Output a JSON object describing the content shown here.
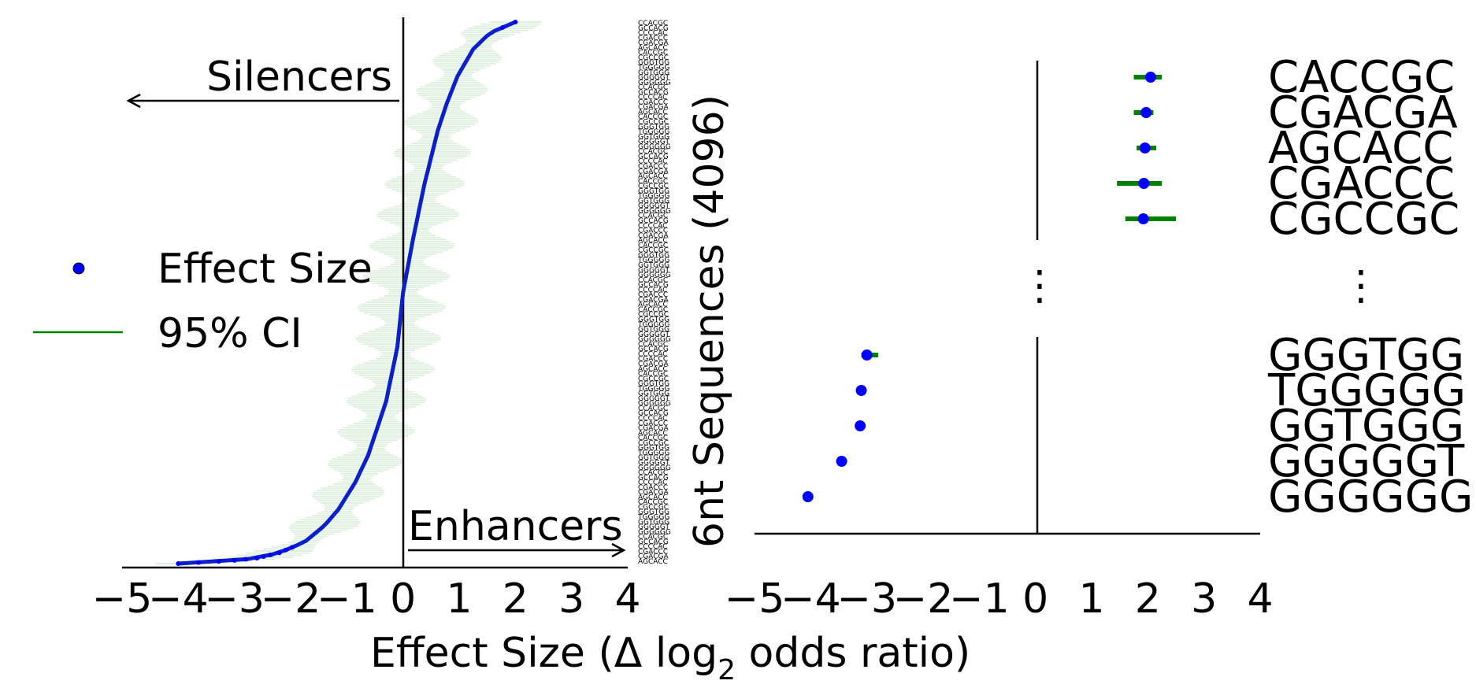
{
  "chart_data": [
    {
      "type": "scatter",
      "description_axis": {
        "xlabel_prefix": "Effect Size (Δ log",
        "xlabel_sub": "2",
        "xlabel_suffix": " odds ratio)",
        "xlim": [
          -5,
          4
        ],
        "xticks": [
          "−5",
          "−4",
          "−3",
          "−2",
          "−1",
          "0",
          "1",
          "2",
          "3",
          "4"
        ]
      },
      "annotations": {
        "silencers": "Silencers",
        "enhancers": "Enhancers"
      },
      "legend": {
        "placement": "left",
        "entries": [
          {
            "label": "Effect Size",
            "marker": "point",
            "color": "#0000ff"
          },
          {
            "label": "95% CI",
            "marker": "line",
            "color": "#008000"
          }
        ]
      },
      "n_sequences": 4096,
      "ylabel": "",
      "ylim": [
        0,
        1
      ],
      "grid": false,
      "curve": {
        "note_color_points": "#0000ff",
        "note_color_ci": "#008000",
        "quantiles": [
          0.0,
          0.005,
          0.01,
          0.02,
          0.04,
          0.07,
          0.1,
          0.15,
          0.2,
          0.3,
          0.4,
          0.5,
          0.6,
          0.7,
          0.8,
          0.85,
          0.9,
          0.95,
          0.98,
          1.0
        ],
        "values": [
          -4.0,
          -3.1,
          -2.6,
          -2.2,
          -1.75,
          -1.4,
          -1.15,
          -0.85,
          -0.62,
          -0.3,
          -0.1,
          0.0,
          0.18,
          0.38,
          0.62,
          0.78,
          0.97,
          1.25,
          1.55,
          2.0
        ]
      },
      "tick_labels_mini": [
        "CCACGC",
        "GCCACG",
        "CCCCAC",
        "CGACCC",
        "CGACGA",
        "AGCACC",
        "CACCGC",
        "CGCCGC",
        "GGGTGG",
        "TGGGGG",
        "GGTGGG",
        "GGGGGT",
        "GGGGGG"
      ]
    },
    {
      "type": "scatter",
      "ylabel": "6nt Sequences (4096)",
      "xlim": [
        -5,
        4
      ],
      "xticks": [
        "−5",
        "−4",
        "−3",
        "−2",
        "−1",
        "0",
        "1",
        "2",
        "3",
        "4"
      ],
      "ellipsis": "⋮",
      "top": [
        {
          "label": "CACCGC",
          "value": 2.05,
          "ci": [
            1.75,
            2.25
          ]
        },
        {
          "label": "CGACGA",
          "value": 1.97,
          "ci": [
            1.75,
            2.1
          ]
        },
        {
          "label": "AGCACC",
          "value": 1.95,
          "ci": [
            1.8,
            2.15
          ]
        },
        {
          "label": "CGACCC",
          "value": 1.93,
          "ci": [
            1.45,
            2.25
          ]
        },
        {
          "label": "CGCCGC",
          "value": 1.92,
          "ci": [
            1.6,
            2.5
          ]
        }
      ],
      "bottom": [
        {
          "label": "GGGTGG",
          "value": -3.0,
          "ci": [
            -3.1,
            -2.8
          ]
        },
        {
          "label": "TGGGGG",
          "value": -3.1,
          "ci": [
            -3.15,
            -3.05
          ]
        },
        {
          "label": "GGTGGG",
          "value": -3.12,
          "ci": [
            -3.2,
            -3.05
          ]
        },
        {
          "label": "GGGGGT",
          "value": -3.45,
          "ci": [
            -3.5,
            -3.4
          ]
        },
        {
          "label": "GGGGGG",
          "value": -4.05,
          "ci": [
            -4.1,
            -4.0
          ]
        }
      ]
    }
  ]
}
